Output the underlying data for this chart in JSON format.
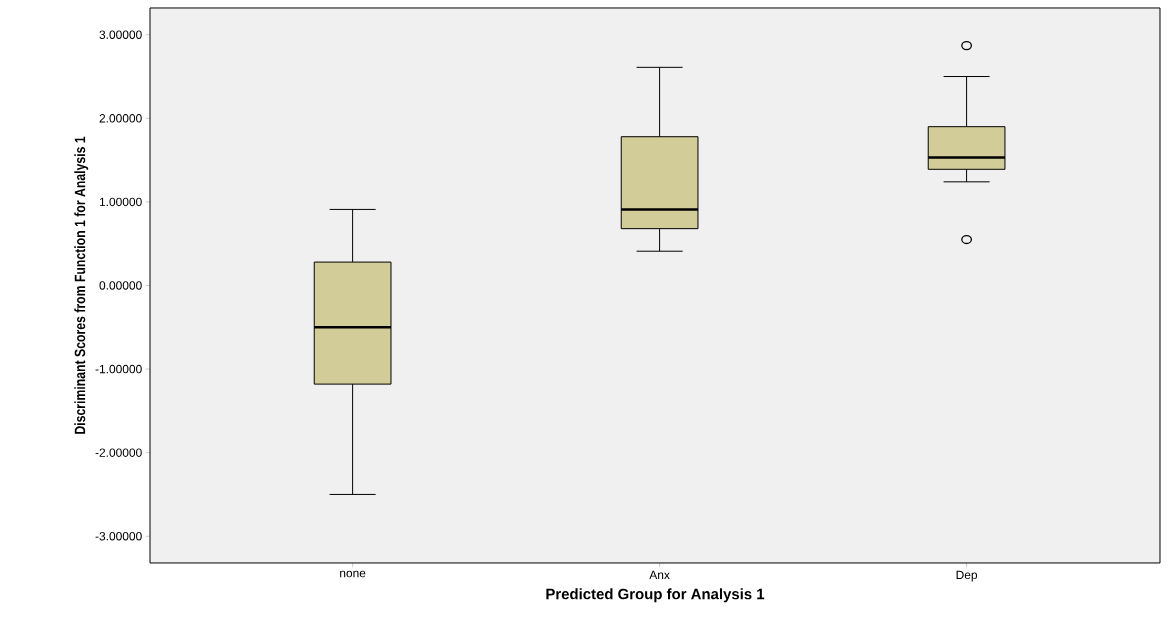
{
  "chart_data": {
    "type": "box",
    "xlabel": "Predicted Group for Analysis 1",
    "ylabel": "Discriminant Scores from Function 1 for Analysis 1",
    "categories": [
      "none",
      "Anx",
      "Dep"
    ],
    "boxes": [
      {
        "low": -2.5,
        "q1": -1.18,
        "median": -0.5,
        "q3": 0.28,
        "high": 0.91
      },
      {
        "low": 0.41,
        "q1": 0.68,
        "median": 0.91,
        "q3": 1.78,
        "high": 2.61
      },
      {
        "low": 1.24,
        "q1": 1.39,
        "median": 1.53,
        "q3": 1.9,
        "high": 2.5,
        "outliers": [
          2.87,
          0.55
        ]
      }
    ],
    "color": "#d2cd98",
    "ylim": [
      -3.32,
      3.32
    ],
    "yticks": [
      {
        "value": -3,
        "label": "-3.00000"
      },
      {
        "value": -2,
        "label": "-2.00000"
      },
      {
        "value": -1,
        "label": "-1.00000"
      },
      {
        "value": 0,
        "label": "0.00000"
      },
      {
        "value": 1,
        "label": "1.00000"
      },
      {
        "value": 2,
        "label": "2.00000"
      },
      {
        "value": 3,
        "label": "3.00000"
      }
    ]
  }
}
